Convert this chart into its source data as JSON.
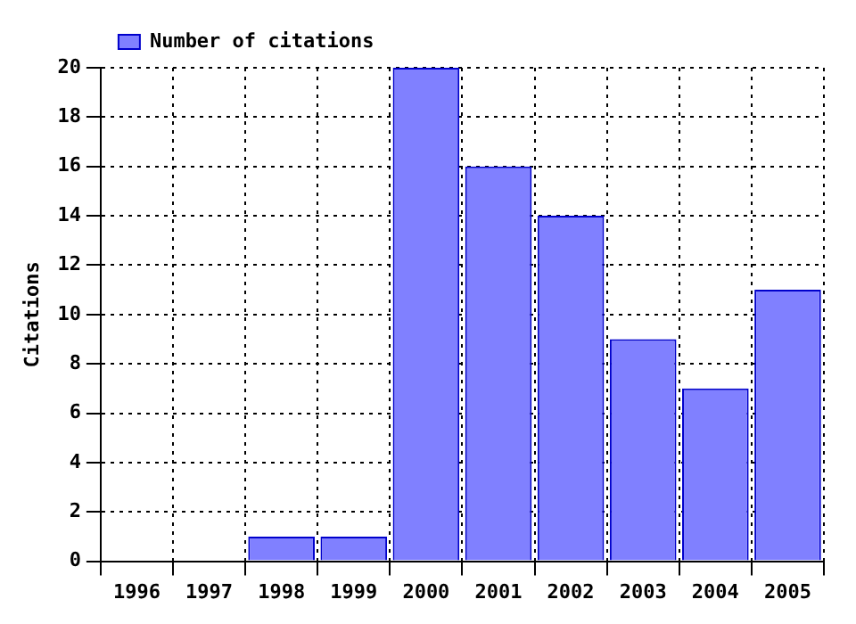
{
  "chart_data": {
    "type": "bar",
    "ylabel": "Citations",
    "categories": [
      "1996",
      "1997",
      "1998",
      "1999",
      "2000",
      "2001",
      "2002",
      "2003",
      "2004",
      "2005"
    ],
    "series": [
      {
        "name": "Number of citations",
        "color": "#8080ff",
        "values": [
          0,
          0,
          1,
          1,
          20,
          16,
          14,
          9,
          7,
          11
        ]
      }
    ],
    "ylim": [
      0,
      20
    ],
    "yticks": [
      0,
      2,
      4,
      6,
      8,
      10,
      12,
      14,
      16,
      18,
      20
    ],
    "grid": true,
    "legend": "top left"
  }
}
